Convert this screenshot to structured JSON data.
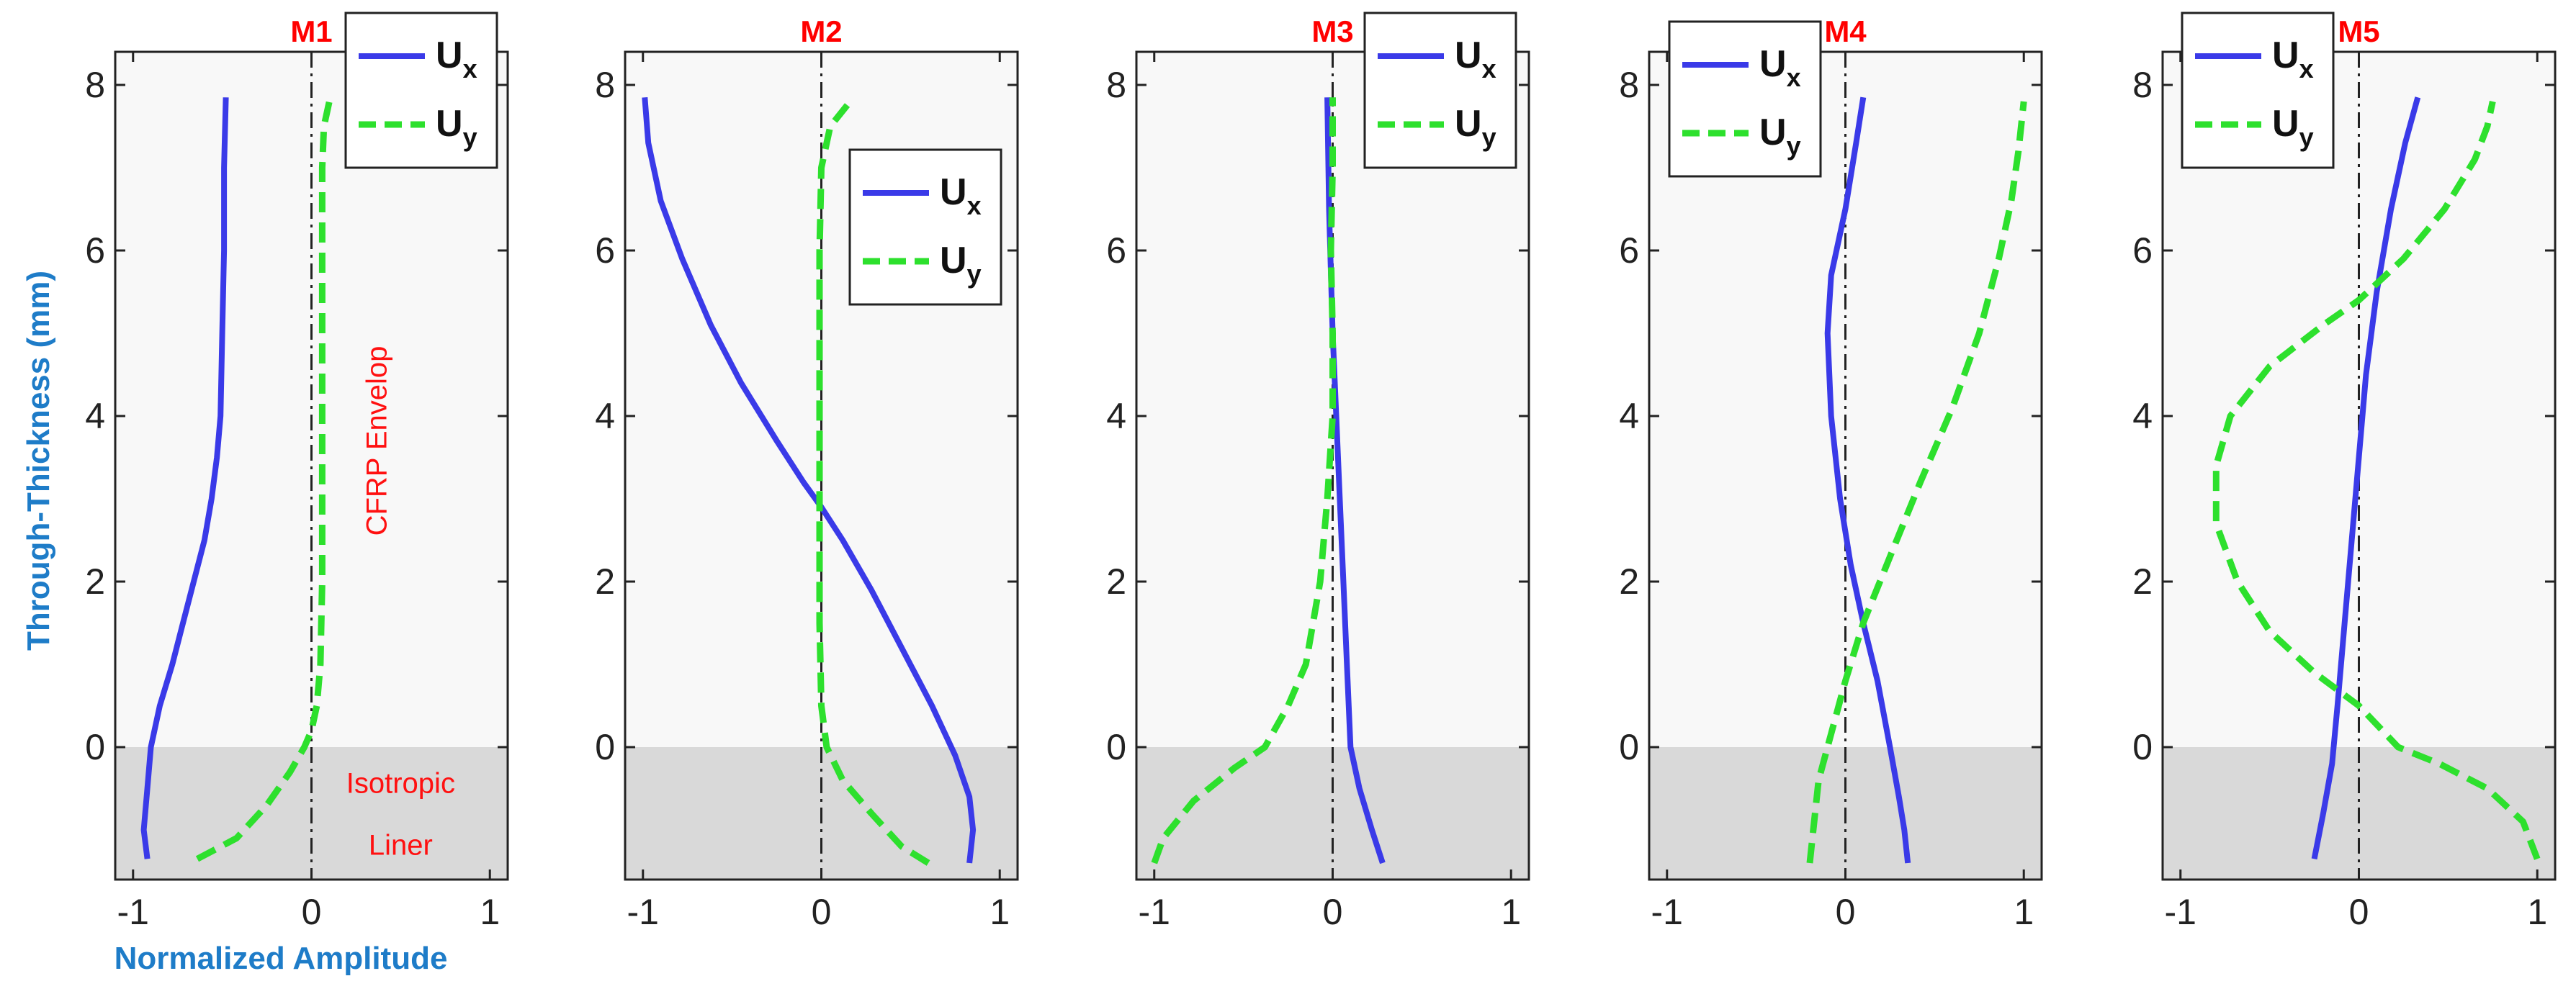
{
  "figure": {
    "ylabel": "Through-Thickness (mm)",
    "xlabel": "Normalized Amplitude"
  },
  "chart_data": [
    {
      "type": "line",
      "title": "M1",
      "xlim": [
        -1.1,
        1.1
      ],
      "ylim": [
        -1.6,
        8.4
      ],
      "xticks": [
        -1,
        0,
        1
      ],
      "yticks": [
        0,
        2,
        4,
        6,
        8
      ],
      "legend_placement": "top-right",
      "region_labels": [
        "CFRP Envelop",
        "Isotropic Liner"
      ],
      "series": [
        {
          "name": "U",
          "sub": "x",
          "color": "#3a3ae8",
          "style": "solid",
          "points": [
            [
              -0.92,
              -1.35
            ],
            [
              -0.94,
              -1.0
            ],
            [
              -0.92,
              -0.5
            ],
            [
              -0.9,
              0
            ],
            [
              -0.85,
              0.5
            ],
            [
              -0.78,
              1.0
            ],
            [
              -0.72,
              1.5
            ],
            [
              -0.66,
              2.0
            ],
            [
              -0.6,
              2.5
            ],
            [
              -0.56,
              3.0
            ],
            [
              -0.53,
              3.5
            ],
            [
              -0.51,
              4.0
            ],
            [
              -0.5,
              5.0
            ],
            [
              -0.49,
              6.0
            ],
            [
              -0.49,
              7.0
            ],
            [
              -0.48,
              7.85
            ]
          ]
        },
        {
          "name": "U",
          "sub": "y",
          "color": "#2de02d",
          "style": "dashed",
          "points": [
            [
              -0.64,
              -1.35
            ],
            [
              -0.42,
              -1.1
            ],
            [
              -0.25,
              -0.7
            ],
            [
              -0.12,
              -0.3
            ],
            [
              -0.04,
              0
            ],
            [
              0.0,
              0.2
            ],
            [
              0.03,
              0.5
            ],
            [
              0.05,
              1.0
            ],
            [
              0.06,
              2.0
            ],
            [
              0.06,
              3.0
            ],
            [
              0.06,
              4.0
            ],
            [
              0.06,
              5.0
            ],
            [
              0.06,
              6.0
            ],
            [
              0.06,
              7.0
            ],
            [
              0.07,
              7.5
            ],
            [
              0.1,
              7.8
            ]
          ]
        }
      ]
    },
    {
      "type": "line",
      "title": "M2",
      "xlim": [
        -1.1,
        1.1
      ],
      "ylim": [
        -1.6,
        8.4
      ],
      "xticks": [
        -1,
        0,
        1
      ],
      "yticks": [
        0,
        2,
        4,
        6,
        8
      ],
      "legend_placement": "upper-right",
      "series": [
        {
          "name": "U",
          "sub": "x",
          "color": "#3a3ae8",
          "style": "solid",
          "points": [
            [
              -0.99,
              7.85
            ],
            [
              -0.97,
              7.3
            ],
            [
              -0.9,
              6.6
            ],
            [
              -0.78,
              5.9
            ],
            [
              -0.62,
              5.1
            ],
            [
              -0.45,
              4.4
            ],
            [
              -0.25,
              3.7
            ],
            [
              -0.1,
              3.2
            ],
            [
              0.0,
              2.9
            ],
            [
              0.12,
              2.5
            ],
            [
              0.28,
              1.9
            ],
            [
              0.45,
              1.2
            ],
            [
              0.62,
              0.5
            ],
            [
              0.75,
              -0.1
            ],
            [
              0.83,
              -0.6
            ],
            [
              0.85,
              -1.0
            ],
            [
              0.83,
              -1.4
            ]
          ]
        },
        {
          "name": "U",
          "sub": "y",
          "color": "#2de02d",
          "style": "dashed",
          "points": [
            [
              0.6,
              -1.4
            ],
            [
              0.45,
              -1.2
            ],
            [
              0.28,
              -0.8
            ],
            [
              0.12,
              -0.4
            ],
            [
              0.03,
              0
            ],
            [
              0.0,
              0.5
            ],
            [
              -0.01,
              1.5
            ],
            [
              -0.01,
              3.0
            ],
            [
              -0.01,
              4.5
            ],
            [
              -0.01,
              6.0
            ],
            [
              0.0,
              7.0
            ],
            [
              0.05,
              7.5
            ],
            [
              0.18,
              7.85
            ]
          ]
        }
      ]
    },
    {
      "type": "line",
      "title": "M3",
      "xlim": [
        -1.1,
        1.1
      ],
      "ylim": [
        -1.6,
        8.4
      ],
      "xticks": [
        -1,
        0,
        1
      ],
      "yticks": [
        0,
        2,
        4,
        6,
        8
      ],
      "legend_placement": "top-right",
      "series": [
        {
          "name": "U",
          "sub": "x",
          "color": "#3a3ae8",
          "style": "solid",
          "points": [
            [
              -0.03,
              7.85
            ],
            [
              -0.02,
              6.5
            ],
            [
              0.0,
              5.0
            ],
            [
              0.02,
              4.0
            ],
            [
              0.04,
              3.0
            ],
            [
              0.06,
              2.0
            ],
            [
              0.08,
              1.0
            ],
            [
              0.1,
              0
            ],
            [
              0.15,
              -0.5
            ],
            [
              0.22,
              -1.0
            ],
            [
              0.28,
              -1.4
            ]
          ]
        },
        {
          "name": "U",
          "sub": "y",
          "color": "#2de02d",
          "style": "dashed",
          "points": [
            [
              -1.0,
              -1.4
            ],
            [
              -0.95,
              -1.1
            ],
            [
              -0.78,
              -0.65
            ],
            [
              -0.55,
              -0.25
            ],
            [
              -0.38,
              0
            ],
            [
              -0.25,
              0.5
            ],
            [
              -0.15,
              1.0
            ],
            [
              -0.07,
              2.0
            ],
            [
              -0.03,
              3.0
            ],
            [
              0.0,
              4.0
            ],
            [
              0.0,
              5.0
            ],
            [
              -0.01,
              6.0
            ],
            [
              0.0,
              7.0
            ],
            [
              0.0,
              7.85
            ]
          ]
        }
      ]
    },
    {
      "type": "line",
      "title": "M4",
      "xlim": [
        -1.1,
        1.1
      ],
      "ylim": [
        -1.6,
        8.4
      ],
      "xticks": [
        -1,
        0,
        1
      ],
      "yticks": [
        0,
        2,
        4,
        6,
        8
      ],
      "legend_placement": "top-left",
      "series": [
        {
          "name": "U",
          "sub": "x",
          "color": "#3a3ae8",
          "style": "solid",
          "points": [
            [
              0.1,
              7.85
            ],
            [
              0.06,
              7.3
            ],
            [
              0.0,
              6.5
            ],
            [
              -0.08,
              5.7
            ],
            [
              -0.1,
              5.0
            ],
            [
              -0.08,
              4.0
            ],
            [
              -0.03,
              3.0
            ],
            [
              0.03,
              2.2
            ],
            [
              0.1,
              1.5
            ],
            [
              0.18,
              0.8
            ],
            [
              0.25,
              0
            ],
            [
              0.3,
              -0.6
            ],
            [
              0.33,
              -1.0
            ],
            [
              0.35,
              -1.4
            ]
          ]
        },
        {
          "name": "U",
          "sub": "y",
          "color": "#2de02d",
          "style": "dashed",
          "points": [
            [
              -0.2,
              -1.4
            ],
            [
              -0.18,
              -1.0
            ],
            [
              -0.15,
              -0.4
            ],
            [
              -0.1,
              0
            ],
            [
              0.0,
              0.8
            ],
            [
              0.1,
              1.5
            ],
            [
              0.25,
              2.3
            ],
            [
              0.42,
              3.2
            ],
            [
              0.6,
              4.1
            ],
            [
              0.75,
              5.0
            ],
            [
              0.86,
              5.9
            ],
            [
              0.93,
              6.6
            ],
            [
              0.97,
              7.2
            ],
            [
              1.0,
              7.8
            ]
          ]
        }
      ]
    },
    {
      "type": "line",
      "title": "M5",
      "xlim": [
        -1.1,
        1.1
      ],
      "ylim": [
        -1.6,
        8.4
      ],
      "xticks": [
        -1,
        0,
        1
      ],
      "yticks": [
        0,
        2,
        4,
        6,
        8
      ],
      "legend_placement": "top-left",
      "series": [
        {
          "name": "U",
          "sub": "x",
          "color": "#3a3ae8",
          "style": "solid",
          "points": [
            [
              -0.25,
              -1.35
            ],
            [
              -0.2,
              -0.8
            ],
            [
              -0.15,
              -0.2
            ],
            [
              -0.12,
              0.5
            ],
            [
              -0.08,
              1.5
            ],
            [
              -0.04,
              2.5
            ],
            [
              0.0,
              3.5
            ],
            [
              0.04,
              4.5
            ],
            [
              0.1,
              5.5
            ],
            [
              0.18,
              6.5
            ],
            [
              0.26,
              7.3
            ],
            [
              0.33,
              7.85
            ]
          ]
        },
        {
          "name": "U",
          "sub": "y",
          "color": "#2de02d",
          "style": "dashed",
          "points": [
            [
              1.0,
              -1.35
            ],
            [
              0.92,
              -0.9
            ],
            [
              0.72,
              -0.5
            ],
            [
              0.45,
              -0.2
            ],
            [
              0.22,
              0
            ],
            [
              0.0,
              0.5
            ],
            [
              -0.25,
              0.9
            ],
            [
              -0.5,
              1.4
            ],
            [
              -0.68,
              2.0
            ],
            [
              -0.8,
              2.7
            ],
            [
              -0.8,
              3.4
            ],
            [
              -0.72,
              4.0
            ],
            [
              -0.5,
              4.6
            ],
            [
              -0.2,
              5.1
            ],
            [
              0.0,
              5.4
            ],
            [
              0.25,
              5.9
            ],
            [
              0.48,
              6.5
            ],
            [
              0.65,
              7.1
            ],
            [
              0.72,
              7.5
            ],
            [
              0.75,
              7.8
            ]
          ]
        }
      ]
    }
  ]
}
